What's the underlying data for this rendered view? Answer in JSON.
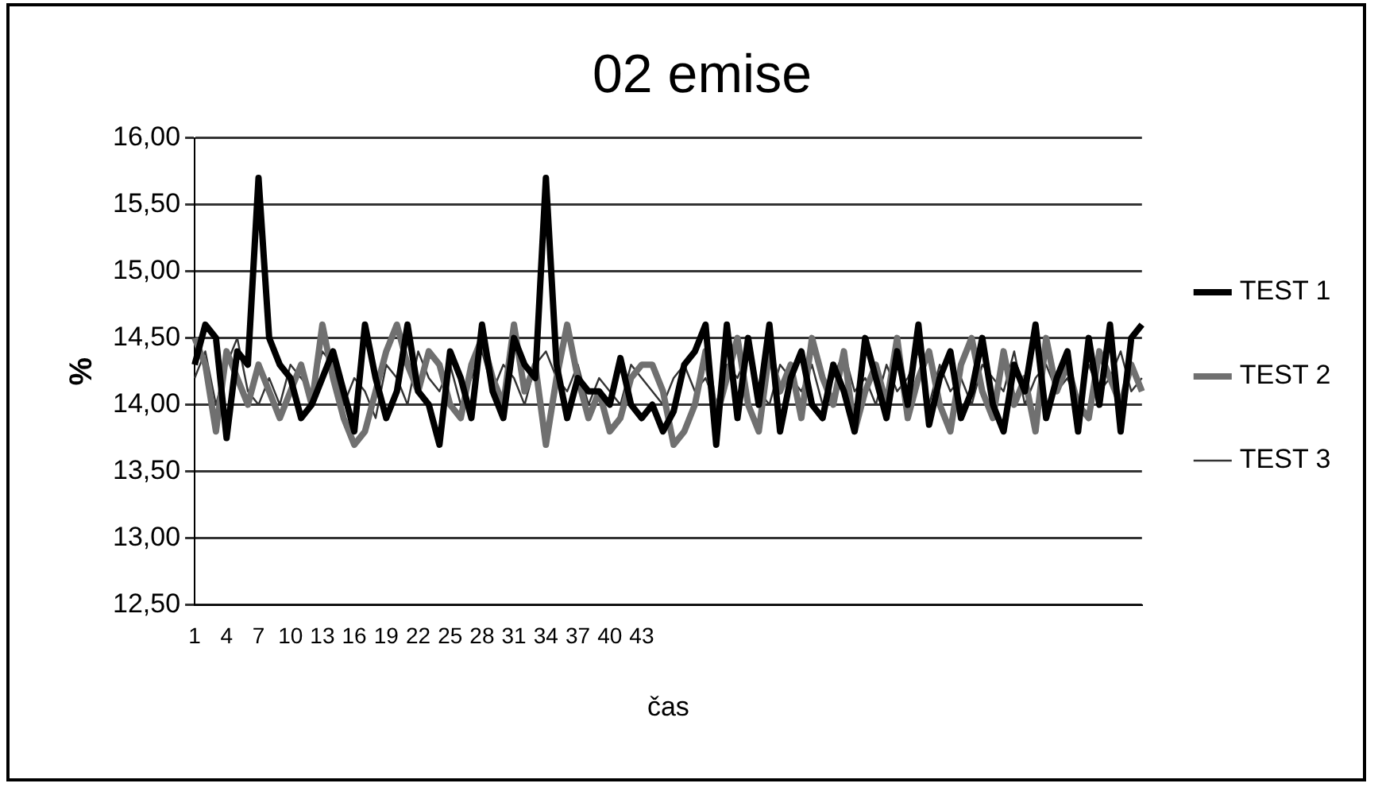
{
  "chart_data": {
    "type": "line",
    "title": "02 emise",
    "xlabel": "čas",
    "ylabel": "%",
    "categories": [
      "1",
      null,
      null,
      "4",
      null,
      null,
      "7",
      null,
      null,
      "10",
      null,
      null,
      "13",
      null,
      null,
      "16",
      null,
      null,
      "19",
      null,
      null,
      "22",
      null,
      null,
      "25",
      null,
      null,
      "28",
      null,
      null,
      "31",
      null,
      null,
      "34",
      null,
      null,
      "37",
      null,
      null,
      "40",
      null,
      null,
      "43",
      null,
      null,
      null,
      null,
      null,
      null,
      null,
      null,
      null,
      null,
      null,
      null,
      null,
      null,
      null,
      null,
      null,
      null,
      null,
      null,
      null,
      null,
      null,
      null,
      null,
      null,
      null,
      null,
      null,
      null,
      null,
      null,
      null,
      null,
      null,
      null,
      null,
      null,
      null,
      null,
      null,
      null,
      null,
      null,
      null,
      null,
      null
    ],
    "series": [
      {
        "name": "TEST 1",
        "color": "#000000",
        "values": [
          14.3,
          14.6,
          14.5,
          13.75,
          14.4,
          14.3,
          15.7,
          14.5,
          14.3,
          14.2,
          13.9,
          14.0,
          14.2,
          14.4,
          14.1,
          13.8,
          14.6,
          14.2,
          13.9,
          14.1,
          14.6,
          14.1,
          14.0,
          13.7,
          14.4,
          14.2,
          13.9,
          14.6,
          14.1,
          13.9,
          14.5,
          14.3,
          14.2,
          15.7,
          14.3,
          13.9,
          14.2,
          14.1,
          14.1,
          14.0,
          14.35,
          14.0,
          13.9,
          14.0,
          13.8,
          13.95,
          14.3,
          14.4,
          14.6,
          13.7,
          14.6,
          13.9,
          14.5,
          14.0,
          14.6,
          13.8,
          14.2,
          14.4,
          14.0,
          13.9,
          14.3,
          14.1,
          13.8,
          14.5,
          14.2,
          13.9,
          14.4,
          14.0,
          14.6,
          13.85,
          14.2,
          14.4,
          13.9,
          14.1,
          14.5,
          14.0,
          13.8,
          14.3,
          14.1,
          14.6,
          13.9,
          14.2,
          14.4,
          13.8,
          14.5,
          14.0,
          14.6,
          13.8,
          14.5,
          14.6
        ]
      },
      {
        "name": "TEST 2",
        "color": "#707070",
        "values": [
          14.5,
          14.3,
          13.8,
          14.4,
          14.2,
          14.0,
          14.3,
          14.1,
          13.9,
          14.1,
          14.3,
          14.0,
          14.6,
          14.2,
          13.9,
          13.7,
          13.8,
          14.1,
          14.4,
          14.6,
          14.3,
          14.1,
          14.4,
          14.3,
          14.0,
          13.9,
          14.3,
          14.5,
          14.2,
          14.0,
          14.6,
          14.1,
          14.3,
          13.7,
          14.2,
          14.6,
          14.2,
          13.9,
          14.1,
          13.8,
          13.9,
          14.2,
          14.3,
          14.3,
          14.1,
          13.7,
          13.8,
          14.0,
          14.4,
          13.9,
          14.2,
          14.5,
          14.0,
          13.8,
          14.4,
          14.1,
          14.3,
          13.9,
          14.5,
          14.2,
          14.0,
          14.4,
          13.8,
          14.1,
          14.3,
          14.0,
          14.5,
          13.9,
          14.2,
          14.4,
          14.0,
          13.8,
          14.3,
          14.5,
          14.1,
          13.9,
          14.4,
          14.0,
          14.2,
          13.8,
          14.5,
          14.1,
          14.3,
          14.0,
          13.9,
          14.4,
          14.2,
          14.0,
          14.3,
          14.1
        ]
      },
      {
        "name": "TEST 3",
        "color": "#333333",
        "values": [
          14.2,
          14.4,
          14.0,
          14.3,
          14.5,
          14.1,
          14.0,
          14.2,
          14.0,
          14.3,
          14.2,
          14.1,
          14.4,
          14.3,
          14.0,
          14.2,
          14.1,
          13.9,
          14.3,
          14.2,
          14.0,
          14.4,
          14.2,
          14.1,
          14.3,
          14.0,
          14.2,
          14.4,
          14.1,
          14.3,
          14.2,
          14.0,
          14.3,
          14.4,
          14.2,
          14.1,
          14.3,
          14.0,
          14.2,
          14.1,
          14.0,
          14.3,
          14.2,
          14.1,
          14.0,
          14.2,
          14.3,
          14.1,
          14.2,
          14.0,
          14.3,
          14.2,
          14.4,
          14.1,
          14.0,
          14.3,
          14.2,
          14.1,
          14.3,
          14.0,
          14.2,
          14.4,
          14.1,
          14.2,
          14.0,
          14.3,
          14.1,
          14.2,
          14.4,
          14.0,
          14.3,
          14.1,
          14.2,
          14.0,
          14.3,
          14.2,
          14.1,
          14.4,
          14.0,
          14.2,
          14.3,
          14.1,
          14.2,
          14.0,
          14.3,
          14.1,
          14.2,
          14.4,
          14.1,
          14.2
        ]
      }
    ],
    "ylim": [
      12.5,
      16
    ],
    "yticks": [
      {
        "value": 12.5,
        "label": "12,50"
      },
      {
        "value": 13,
        "label": "13,00"
      },
      {
        "value": 13.5,
        "label": "13,50"
      },
      {
        "value": 14,
        "label": "14,00"
      },
      {
        "value": 14.5,
        "label": "14,50"
      },
      {
        "value": 15,
        "label": "15,00"
      },
      {
        "value": 15.5,
        "label": "15,50"
      },
      {
        "value": 16,
        "label": "16,00"
      }
    ],
    "grid": "y",
    "legend": "right",
    "marker": "none",
    "line_style": "solid"
  }
}
